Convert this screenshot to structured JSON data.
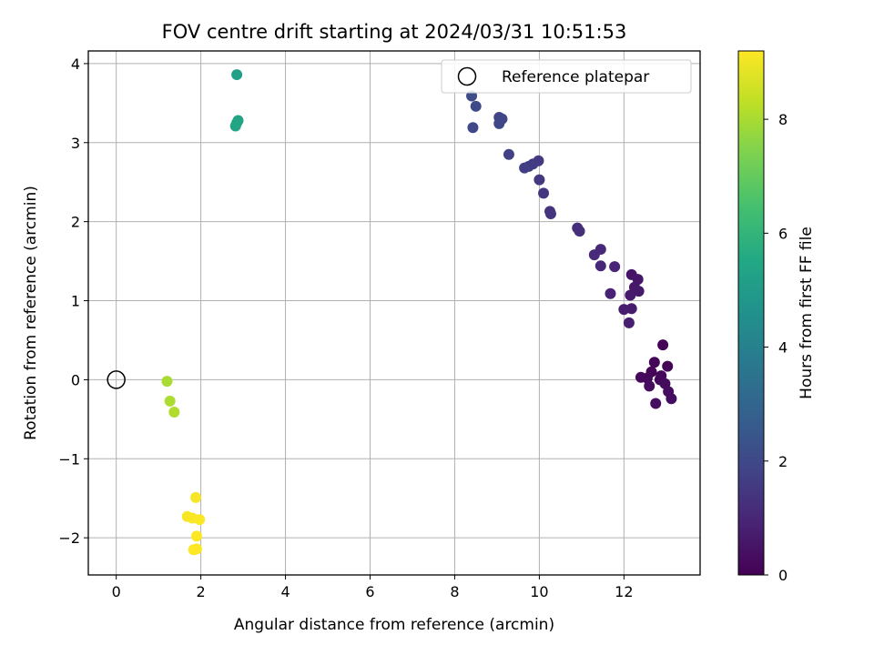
{
  "chart_data": {
    "type": "scatter",
    "title": "FOV centre drift starting at 2024/03/31 10:51:53",
    "xlabel": "Angular distance from reference (arcmin)",
    "ylabel": "Rotation from reference (arcmin)",
    "xlim": [
      -0.66,
      13.8
    ],
    "ylim": [
      -2.47,
      4.16
    ],
    "xticks": [
      0,
      2,
      4,
      6,
      8,
      10,
      12
    ],
    "yticks": [
      -2,
      -1,
      0,
      1,
      2,
      3,
      4
    ],
    "grid": true,
    "colormap": "viridis",
    "colorbar": {
      "label": "Hours from first FF file",
      "range": [
        0,
        9.2
      ],
      "ticks": [
        0,
        2,
        4,
        6,
        8
      ]
    },
    "legend": {
      "position": "top-right",
      "entries": [
        {
          "label": "Reference platepar",
          "marker": "open-circle"
        }
      ]
    },
    "reference_point": {
      "x": 0,
      "y": 0
    },
    "points": [
      {
        "x": 12.92,
        "y": 0.44,
        "c": 0.05
      },
      {
        "x": 12.72,
        "y": 0.22,
        "c": 0.08
      },
      {
        "x": 13.03,
        "y": 0.17,
        "c": 0.1
      },
      {
        "x": 12.65,
        "y": 0.1,
        "c": 0.12
      },
      {
        "x": 12.88,
        "y": 0.05,
        "c": 0.15
      },
      {
        "x": 12.4,
        "y": 0.03,
        "c": 0.18
      },
      {
        "x": 12.55,
        "y": 0.02,
        "c": 0.2
      },
      {
        "x": 12.85,
        "y": 0.0,
        "c": 0.22
      },
      {
        "x": 12.97,
        "y": -0.05,
        "c": 0.25
      },
      {
        "x": 12.6,
        "y": -0.08,
        "c": 0.27
      },
      {
        "x": 13.05,
        "y": -0.15,
        "c": 0.3
      },
      {
        "x": 13.12,
        "y": -0.24,
        "c": 0.32
      },
      {
        "x": 12.75,
        "y": -0.3,
        "c": 0.35
      },
      {
        "x": 12.18,
        "y": 1.33,
        "c": 0.5
      },
      {
        "x": 12.33,
        "y": 1.27,
        "c": 0.55
      },
      {
        "x": 12.25,
        "y": 1.17,
        "c": 0.6
      },
      {
        "x": 12.35,
        "y": 1.12,
        "c": 0.62
      },
      {
        "x": 12.15,
        "y": 1.07,
        "c": 0.65
      },
      {
        "x": 12.18,
        "y": 0.9,
        "c": 0.7
      },
      {
        "x": 12.0,
        "y": 0.89,
        "c": 0.75
      },
      {
        "x": 12.12,
        "y": 0.72,
        "c": 0.8
      },
      {
        "x": 11.68,
        "y": 1.09,
        "c": 0.9
      },
      {
        "x": 11.78,
        "y": 1.43,
        "c": 0.95
      },
      {
        "x": 11.45,
        "y": 1.44,
        "c": 1.0
      },
      {
        "x": 11.45,
        "y": 1.65,
        "c": 1.05
      },
      {
        "x": 11.3,
        "y": 1.58,
        "c": 1.1
      },
      {
        "x": 10.9,
        "y": 1.92,
        "c": 1.2
      },
      {
        "x": 10.95,
        "y": 1.88,
        "c": 1.25
      },
      {
        "x": 10.25,
        "y": 2.13,
        "c": 1.35
      },
      {
        "x": 10.27,
        "y": 2.1,
        "c": 1.4
      },
      {
        "x": 10.1,
        "y": 2.36,
        "c": 1.45
      },
      {
        "x": 10.0,
        "y": 2.53,
        "c": 1.5
      },
      {
        "x": 9.98,
        "y": 2.77,
        "c": 1.55
      },
      {
        "x": 9.85,
        "y": 2.73,
        "c": 1.6
      },
      {
        "x": 9.75,
        "y": 2.7,
        "c": 1.65
      },
      {
        "x": 9.65,
        "y": 2.68,
        "c": 1.7
      },
      {
        "x": 9.28,
        "y": 2.85,
        "c": 1.75
      },
      {
        "x": 9.05,
        "y": 3.32,
        "c": 1.85
      },
      {
        "x": 9.12,
        "y": 3.3,
        "c": 1.9
      },
      {
        "x": 9.05,
        "y": 3.24,
        "c": 1.95
      },
      {
        "x": 8.43,
        "y": 3.19,
        "c": 2.0
      },
      {
        "x": 8.5,
        "y": 3.46,
        "c": 2.05
      },
      {
        "x": 8.4,
        "y": 3.59,
        "c": 2.1
      },
      {
        "x": 2.85,
        "y": 3.86,
        "c": 5.2
      },
      {
        "x": 2.88,
        "y": 3.28,
        "c": 5.3
      },
      {
        "x": 2.85,
        "y": 3.25,
        "c": 5.35
      },
      {
        "x": 2.82,
        "y": 3.21,
        "c": 5.4
      },
      {
        "x": 1.2,
        "y": -0.02,
        "c": 8.0
      },
      {
        "x": 1.27,
        "y": -0.27,
        "c": 8.05
      },
      {
        "x": 1.37,
        "y": -0.41,
        "c": 8.1
      },
      {
        "x": 1.88,
        "y": -1.49,
        "c": 9.1
      },
      {
        "x": 1.68,
        "y": -1.73,
        "c": 9.12
      },
      {
        "x": 1.8,
        "y": -1.75,
        "c": 9.14
      },
      {
        "x": 1.97,
        "y": -1.77,
        "c": 9.16
      },
      {
        "x": 1.9,
        "y": -1.98,
        "c": 9.18
      },
      {
        "x": 1.83,
        "y": -2.15,
        "c": 9.19
      },
      {
        "x": 1.9,
        "y": -2.14,
        "c": 9.2
      }
    ]
  }
}
